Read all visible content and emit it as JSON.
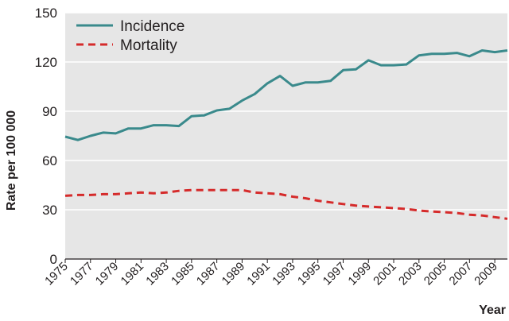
{
  "chart_data": {
    "type": "line",
    "title": "",
    "xlabel": "Year",
    "ylabel": "Rate per 100 000",
    "xlim": [
      1975,
      2010
    ],
    "ylim": [
      0,
      150
    ],
    "yticks": [
      0,
      30,
      60,
      90,
      120,
      150
    ],
    "xticks": [
      1975,
      1977,
      1979,
      1981,
      1983,
      1985,
      1987,
      1989,
      1991,
      1993,
      1995,
      1997,
      1999,
      2001,
      2003,
      2005,
      2007,
      2009
    ],
    "xtick_labels": [
      "1975",
      "1977",
      "1979",
      "1981",
      "1983",
      "1985",
      "1987",
      "1989",
      "1991",
      "1993",
      "1995",
      "1997",
      "1999",
      "2001",
      "2003",
      "2005",
      "2007",
      "2009"
    ],
    "grid": true,
    "legend_position": "top-left",
    "background": "#e6e6e6",
    "x": [
      1975,
      1976,
      1977,
      1978,
      1979,
      1980,
      1981,
      1982,
      1983,
      1984,
      1985,
      1986,
      1987,
      1988,
      1989,
      1990,
      1991,
      1992,
      1993,
      1994,
      1995,
      1996,
      1997,
      1998,
      1999,
      2000,
      2001,
      2002,
      2003,
      2004,
      2005,
      2006,
      2007,
      2008,
      2009,
      2010
    ],
    "series": [
      {
        "name": "Incidence",
        "color": "#3a8a8c",
        "style": "solid",
        "values": [
          74.5,
          72.5,
          75,
          77,
          76.5,
          79.5,
          79.5,
          81.5,
          81.5,
          81,
          87,
          87.5,
          90.5,
          91.5,
          96.5,
          100.5,
          107,
          111.5,
          105.5,
          107.5,
          107.5,
          108.5,
          115,
          115.5,
          121,
          118,
          118,
          118.5,
          124,
          125,
          125,
          125.5,
          123.5,
          127,
          126,
          127
        ]
      },
      {
        "name": "Mortality",
        "color": "#d52b2b",
        "style": "dashed",
        "values": [
          38.5,
          39,
          39,
          39.5,
          39.5,
          40,
          40.5,
          40,
          40.5,
          41.5,
          42,
          42,
          42,
          42,
          42,
          40.5,
          40,
          39.5,
          38,
          37,
          35.5,
          34.5,
          33.5,
          32.5,
          32,
          31.5,
          31,
          30.5,
          29.5,
          29,
          28.5,
          28,
          27,
          26.5,
          25.5,
          24.5
        ]
      }
    ]
  }
}
